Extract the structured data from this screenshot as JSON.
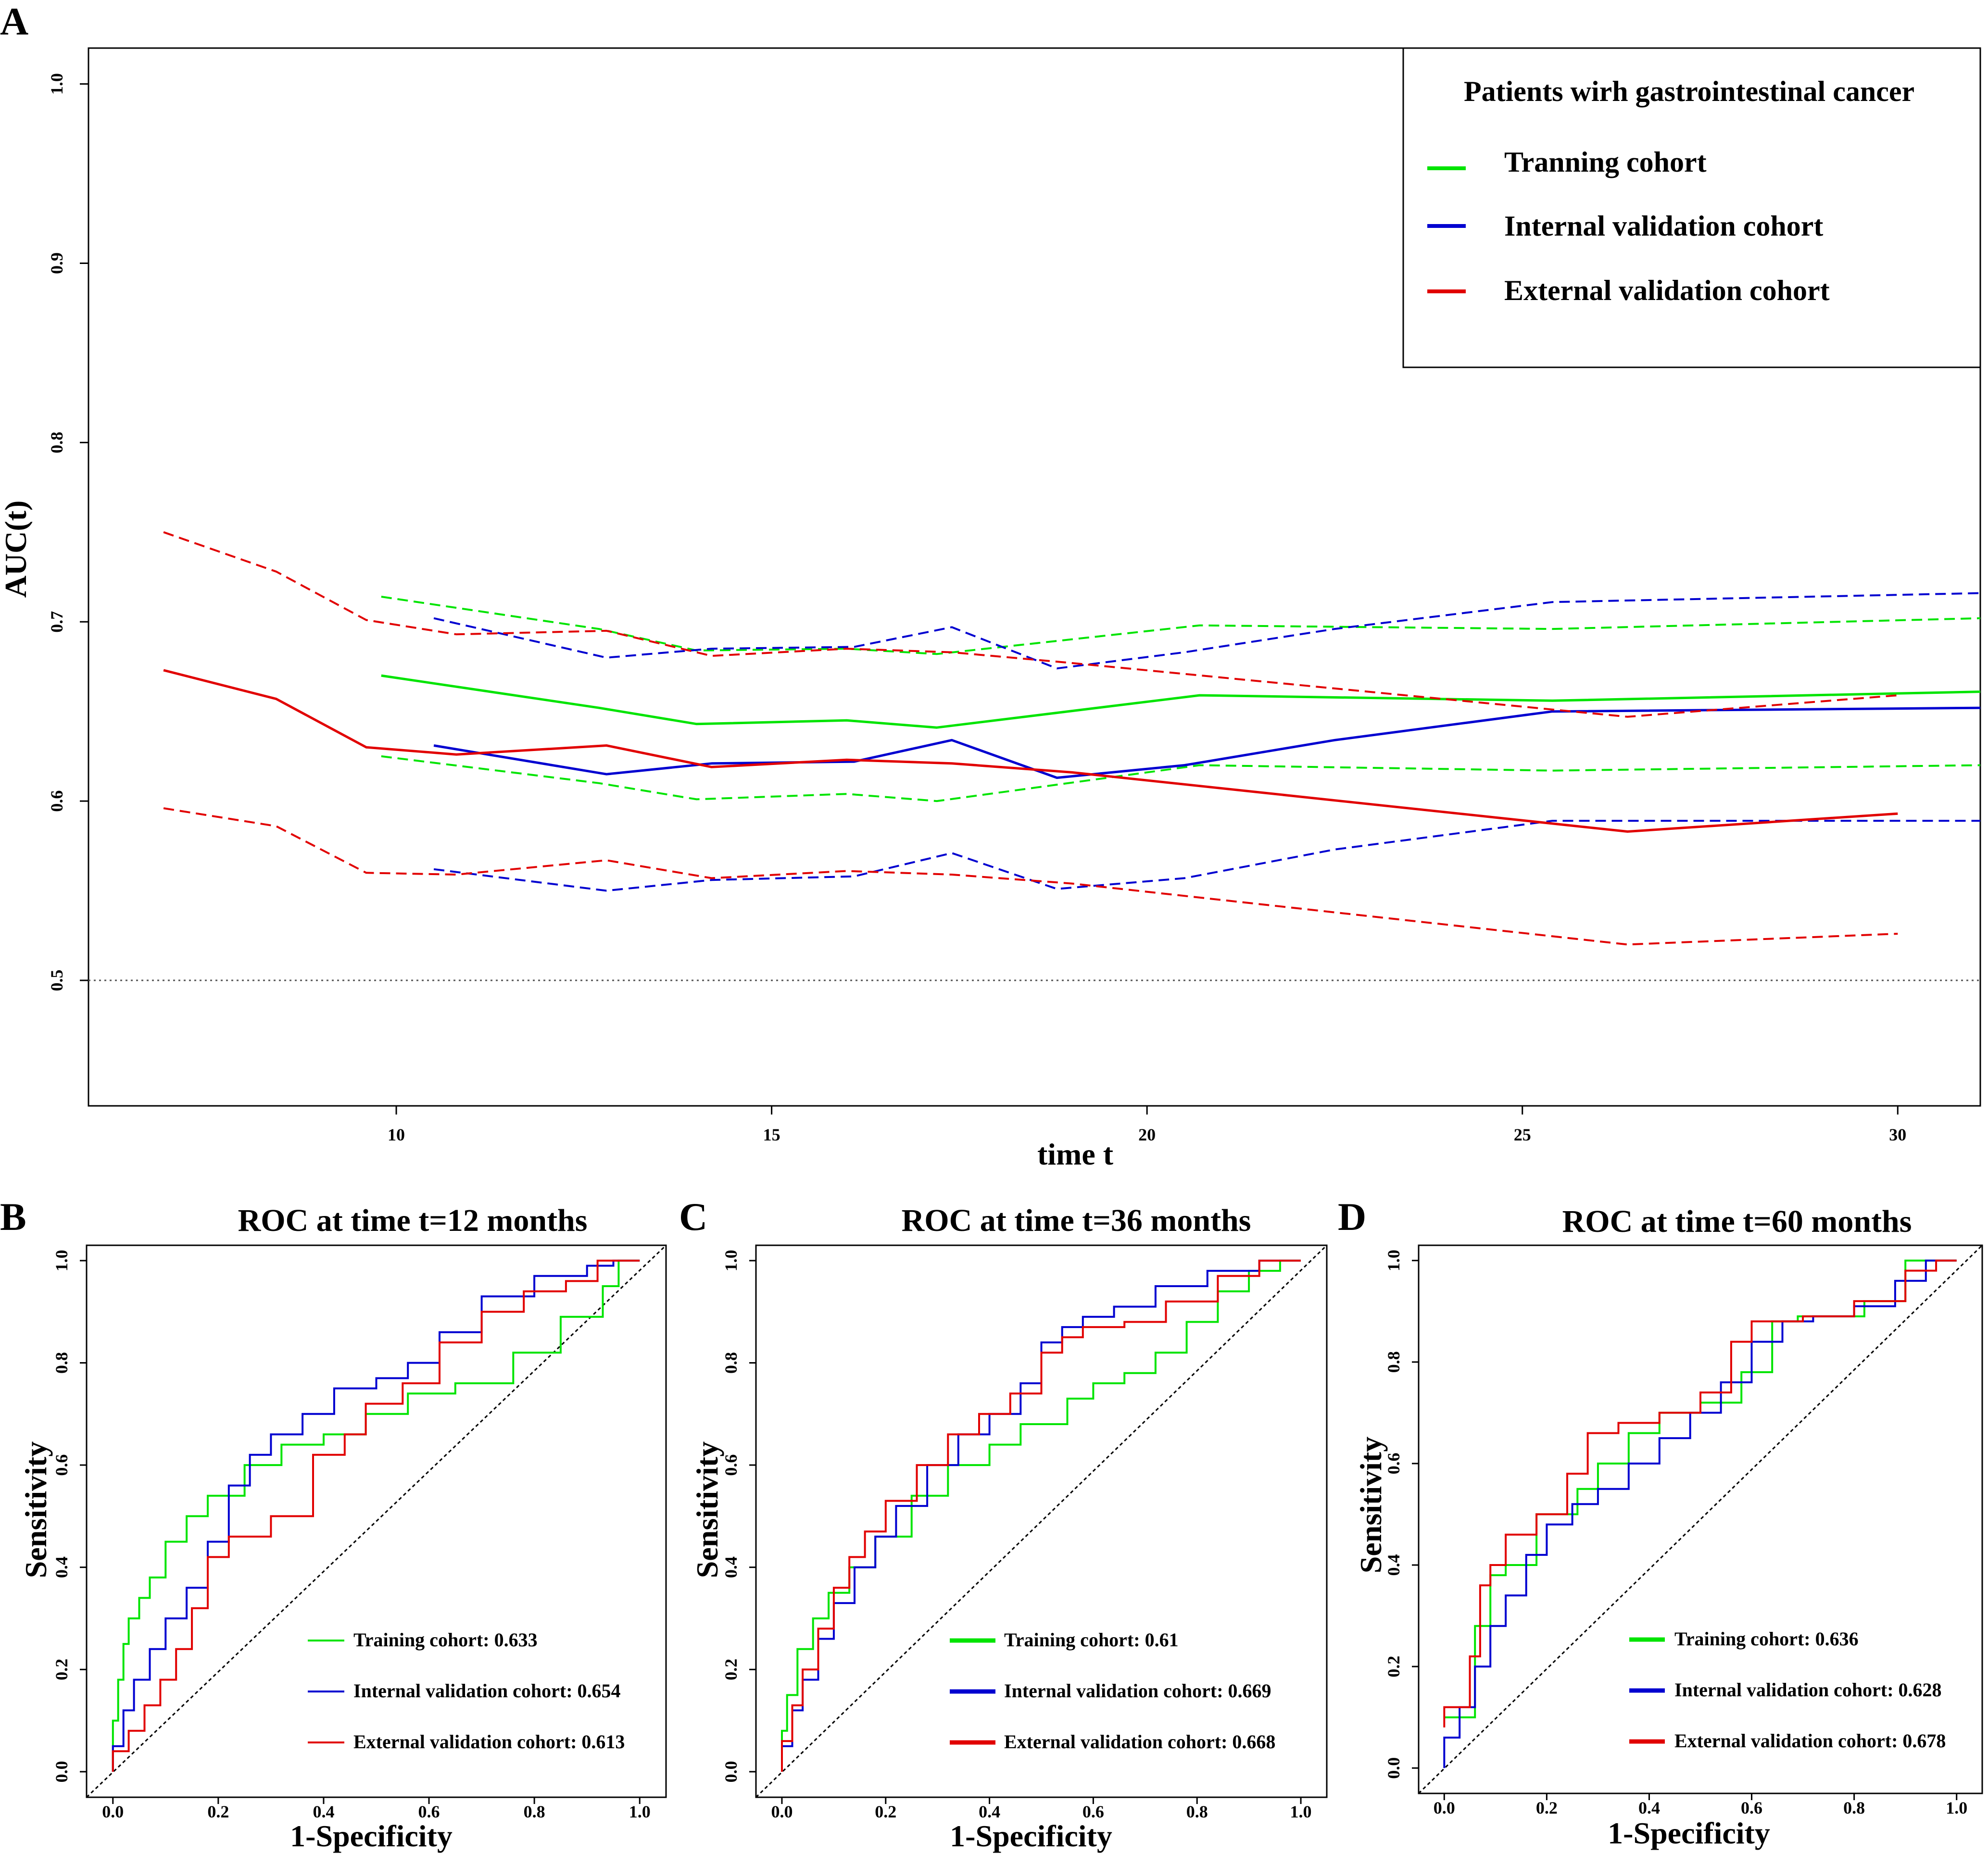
{
  "colors": {
    "training": "#00e400",
    "internal": "#0000d0",
    "external": "#e10000"
  },
  "chart_data": [
    {
      "panel": "A",
      "type": "line",
      "title": "",
      "xlabel": "time t",
      "ylabel": "AUC(t)",
      "xlim": [
        5.9,
        31.1
      ],
      "ylim": [
        0.43,
        1.02
      ],
      "xticks": [
        10,
        15,
        20,
        25,
        30
      ],
      "xtick_labels": [
        "10",
        "15",
        "20",
        "25",
        "30"
      ],
      "yticks": [
        0.5,
        0.6,
        0.7,
        0.8,
        0.9,
        1.0
      ],
      "ytick_labels": [
        "0.5",
        "0.6",
        "0.7",
        "0.8",
        "0.9",
        "1.0"
      ],
      "reference_line": {
        "y": 0.5,
        "style": "dotted"
      },
      "legend": {
        "title": "Patients wirh gastrointestinal cancer",
        "position": "top-right",
        "entries": [
          {
            "label": "Tranning  cohort",
            "color": "training"
          },
          {
            "label": "Internal validation cohort",
            "color": "internal"
          },
          {
            "label": "External validation cohort",
            "color": "external"
          }
        ]
      },
      "series": [
        {
          "name": "Training cohort",
          "color": "training",
          "style": "solid",
          "x": [
            9.8,
            12.7,
            14.0,
            16.0,
            17.2,
            20.7,
            25.4,
            31.1
          ],
          "y": [
            0.67,
            0.652,
            0.643,
            0.645,
            0.641,
            0.659,
            0.656,
            0.661
          ]
        },
        {
          "name": "Training cohort upper",
          "color": "training",
          "style": "dashed",
          "x": [
            9.8,
            12.7,
            14.0,
            16.0,
            17.2,
            20.7,
            25.4,
            31.1
          ],
          "y": [
            0.714,
            0.696,
            0.684,
            0.685,
            0.682,
            0.698,
            0.696,
            0.702
          ]
        },
        {
          "name": "Training cohort lower",
          "color": "training",
          "style": "dashed",
          "x": [
            9.8,
            12.7,
            14.0,
            16.0,
            17.2,
            20.7,
            25.4,
            31.1
          ],
          "y": [
            0.625,
            0.61,
            0.601,
            0.604,
            0.6,
            0.62,
            0.617,
            0.62
          ]
        },
        {
          "name": "Internal validation cohort",
          "color": "internal",
          "style": "solid",
          "x": [
            10.5,
            12.8,
            14.2,
            16.1,
            17.4,
            18.8,
            20.5,
            22.5,
            25.4,
            31.1
          ],
          "y": [
            0.631,
            0.615,
            0.621,
            0.622,
            0.634,
            0.613,
            0.62,
            0.634,
            0.65,
            0.652
          ]
        },
        {
          "name": "Internal validation cohort upper",
          "color": "internal",
          "style": "dashed",
          "x": [
            10.5,
            12.8,
            14.2,
            16.1,
            17.4,
            18.8,
            20.5,
            22.5,
            25.4,
            31.1
          ],
          "y": [
            0.702,
            0.68,
            0.685,
            0.686,
            0.697,
            0.674,
            0.683,
            0.696,
            0.711,
            0.716
          ]
        },
        {
          "name": "Internal validation cohort lower",
          "color": "internal",
          "style": "dashed",
          "x": [
            10.5,
            12.8,
            14.2,
            16.1,
            17.4,
            18.8,
            20.5,
            22.5,
            25.4,
            31.1
          ],
          "y": [
            0.562,
            0.55,
            0.556,
            0.558,
            0.571,
            0.551,
            0.557,
            0.573,
            0.589,
            0.589
          ]
        },
        {
          "name": "External validation cohort",
          "color": "external",
          "style": "solid",
          "x": [
            6.9,
            8.4,
            9.6,
            10.8,
            12.8,
            14.2,
            16.0,
            17.4,
            19.0,
            26.4,
            30.0
          ],
          "y": [
            0.673,
            0.657,
            0.63,
            0.626,
            0.631,
            0.619,
            0.623,
            0.621,
            0.616,
            0.583,
            0.593
          ]
        },
        {
          "name": "External validation cohort upper",
          "color": "external",
          "style": "dashed",
          "x": [
            6.9,
            8.4,
            9.6,
            10.8,
            12.8,
            14.2,
            16.0,
            17.4,
            19.0,
            26.4,
            30.0
          ],
          "y": [
            0.75,
            0.728,
            0.701,
            0.693,
            0.695,
            0.681,
            0.685,
            0.683,
            0.677,
            0.647,
            0.659
          ]
        },
        {
          "name": "External validation cohort lower",
          "color": "external",
          "style": "dashed",
          "x": [
            6.9,
            8.4,
            9.6,
            10.8,
            12.8,
            14.2,
            16.0,
            17.4,
            19.0,
            26.4,
            30.0
          ],
          "y": [
            0.596,
            0.586,
            0.56,
            0.559,
            0.567,
            0.557,
            0.561,
            0.559,
            0.554,
            0.52,
            0.526
          ]
        }
      ]
    },
    {
      "panel": "B",
      "type": "line",
      "title": "ROC at time t=12 months",
      "xlabel": "1-Specificity",
      "ylabel": "Sensitivity",
      "xlim": [
        -0.05,
        1.05
      ],
      "ylim": [
        -0.05,
        1.03
      ],
      "ticks": [
        "0.0",
        "0.2",
        "0.4",
        "0.6",
        "0.8",
        "1.0"
      ],
      "legend": {
        "position": "bottom-right",
        "entries": [
          {
            "label": "Training cohort: 0.633",
            "color": "training"
          },
          {
            "label": "Internal validation cohort: 0.654",
            "color": "internal"
          },
          {
            "label": "External validation cohort: 0.613",
            "color": "external"
          }
        ]
      },
      "series": [
        {
          "name": "Training cohort",
          "auc": 0.633,
          "color": "training",
          "x": [
            0.0,
            0.01,
            0.02,
            0.03,
            0.05,
            0.07,
            0.1,
            0.14,
            0.18,
            0.25,
            0.32,
            0.4,
            0.48,
            0.56,
            0.65,
            0.76,
            0.85,
            0.93,
            0.96,
            1.0
          ],
          "y": [
            0.0,
            0.1,
            0.18,
            0.25,
            0.3,
            0.34,
            0.38,
            0.45,
            0.5,
            0.54,
            0.6,
            0.64,
            0.66,
            0.7,
            0.74,
            0.76,
            0.82,
            0.89,
            0.95,
            1.0
          ]
        },
        {
          "name": "Internal validation cohort",
          "auc": 0.654,
          "color": "internal",
          "x": [
            0.0,
            0.02,
            0.04,
            0.07,
            0.1,
            0.14,
            0.18,
            0.22,
            0.26,
            0.3,
            0.36,
            0.42,
            0.5,
            0.56,
            0.62,
            0.7,
            0.8,
            0.9,
            0.95,
            1.0
          ],
          "y": [
            0.0,
            0.05,
            0.12,
            0.18,
            0.24,
            0.3,
            0.36,
            0.45,
            0.56,
            0.62,
            0.66,
            0.7,
            0.75,
            0.77,
            0.8,
            0.86,
            0.93,
            0.97,
            0.99,
            1.0
          ]
        },
        {
          "name": "External validation cohort",
          "auc": 0.613,
          "color": "external",
          "x": [
            0.0,
            0.03,
            0.06,
            0.09,
            0.12,
            0.15,
            0.18,
            0.22,
            0.3,
            0.38,
            0.44,
            0.48,
            0.55,
            0.62,
            0.7,
            0.78,
            0.86,
            0.92,
            0.96,
            1.0
          ],
          "y": [
            0.0,
            0.04,
            0.08,
            0.13,
            0.18,
            0.24,
            0.32,
            0.42,
            0.46,
            0.5,
            0.62,
            0.66,
            0.72,
            0.76,
            0.84,
            0.9,
            0.94,
            0.96,
            1.0,
            1.0
          ]
        }
      ]
    },
    {
      "panel": "C",
      "type": "line",
      "title": "ROC at time t=36 months",
      "xlabel": "1-Specificity",
      "ylabel": "Sensitivity",
      "xlim": [
        -0.05,
        1.05
      ],
      "ylim": [
        -0.05,
        1.03
      ],
      "ticks": [
        "0.0",
        "0.2",
        "0.4",
        "0.6",
        "0.8",
        "1.0"
      ],
      "legend": {
        "position": "bottom-right",
        "entries": [
          {
            "label": "Training cohort: 0.61",
            "color": "training"
          },
          {
            "label": "Internal validation cohort: 0.669",
            "color": "internal"
          },
          {
            "label": "External validation cohort: 0.668",
            "color": "external"
          }
        ]
      },
      "series": [
        {
          "name": "Training cohort",
          "auc": 0.61,
          "color": "training",
          "x": [
            0.0,
            0.01,
            0.03,
            0.06,
            0.09,
            0.13,
            0.18,
            0.25,
            0.32,
            0.4,
            0.46,
            0.55,
            0.6,
            0.66,
            0.72,
            0.78,
            0.84,
            0.9,
            0.96,
            1.0
          ],
          "y": [
            0.0,
            0.08,
            0.15,
            0.24,
            0.3,
            0.35,
            0.4,
            0.46,
            0.54,
            0.6,
            0.64,
            0.68,
            0.73,
            0.76,
            0.78,
            0.82,
            0.88,
            0.94,
            0.98,
            1.0
          ]
        },
        {
          "name": "Internal validation cohort",
          "auc": 0.669,
          "color": "internal",
          "x": [
            0.0,
            0.02,
            0.04,
            0.07,
            0.1,
            0.14,
            0.18,
            0.22,
            0.28,
            0.34,
            0.4,
            0.46,
            0.5,
            0.54,
            0.58,
            0.64,
            0.72,
            0.82,
            0.92,
            1.0
          ],
          "y": [
            0.0,
            0.05,
            0.12,
            0.18,
            0.26,
            0.33,
            0.4,
            0.46,
            0.52,
            0.6,
            0.66,
            0.7,
            0.76,
            0.84,
            0.87,
            0.89,
            0.91,
            0.95,
            0.98,
            1.0
          ]
        },
        {
          "name": "External validation cohort",
          "auc": 0.668,
          "color": "external",
          "x": [
            0.0,
            0.02,
            0.04,
            0.07,
            0.1,
            0.13,
            0.16,
            0.2,
            0.26,
            0.32,
            0.38,
            0.44,
            0.5,
            0.54,
            0.58,
            0.66,
            0.74,
            0.84,
            0.92,
            1.0
          ],
          "y": [
            0.0,
            0.06,
            0.13,
            0.2,
            0.28,
            0.36,
            0.42,
            0.47,
            0.53,
            0.6,
            0.66,
            0.7,
            0.74,
            0.82,
            0.85,
            0.87,
            0.88,
            0.92,
            0.97,
            1.0
          ]
        }
      ]
    },
    {
      "panel": "D",
      "type": "line",
      "title": "ROC at time t=60 months",
      "xlabel": "1-Specificity",
      "ylabel": "Sensitivity",
      "xlim": [
        -0.05,
        1.05
      ],
      "ylim": [
        -0.05,
        1.03
      ],
      "ticks": [
        "0.0",
        "0.2",
        "0.4",
        "0.6",
        "0.8",
        "1.0"
      ],
      "legend": {
        "position": "bottom-right",
        "entries": [
          {
            "label": "Training cohort: 0.636",
            "color": "training"
          },
          {
            "label": "Internal validation cohort: 0.628",
            "color": "internal"
          },
          {
            "label": "External validation cohort: 0.678",
            "color": "external"
          }
        ]
      },
      "series": [
        {
          "name": "Training cohort",
          "auc": 0.636,
          "color": "training",
          "x": [
            0.0,
            0.06,
            0.09,
            0.12,
            0.18,
            0.26,
            0.3,
            0.36,
            0.42,
            0.5,
            0.58,
            0.64,
            0.69,
            0.74,
            0.82,
            0.9,
            0.93,
            1.0
          ],
          "y": [
            0.1,
            0.1,
            0.28,
            0.38,
            0.4,
            0.5,
            0.55,
            0.6,
            0.66,
            0.7,
            0.72,
            0.78,
            0.88,
            0.89,
            0.89,
            0.92,
            1.0,
            1.0
          ]
        },
        {
          "name": "Internal validation cohort",
          "auc": 0.628,
          "color": "internal",
          "x": [
            0.0,
            0.03,
            0.06,
            0.09,
            0.12,
            0.16,
            0.2,
            0.25,
            0.3,
            0.36,
            0.42,
            0.48,
            0.54,
            0.6,
            0.66,
            0.72,
            0.8,
            0.88,
            0.94,
            1.0
          ],
          "y": [
            0.0,
            0.06,
            0.12,
            0.2,
            0.28,
            0.34,
            0.42,
            0.48,
            0.52,
            0.55,
            0.6,
            0.65,
            0.7,
            0.76,
            0.84,
            0.88,
            0.89,
            0.91,
            0.96,
            1.0
          ]
        },
        {
          "name": "External validation cohort",
          "auc": 0.678,
          "color": "external",
          "x": [
            0.0,
            0.05,
            0.07,
            0.09,
            0.12,
            0.18,
            0.24,
            0.28,
            0.34,
            0.42,
            0.5,
            0.56,
            0.6,
            0.64,
            0.7,
            0.8,
            0.9,
            0.96,
            1.0
          ],
          "y": [
            0.08,
            0.12,
            0.22,
            0.36,
            0.4,
            0.46,
            0.5,
            0.58,
            0.66,
            0.68,
            0.7,
            0.74,
            0.84,
            0.88,
            0.88,
            0.89,
            0.92,
            0.98,
            1.0
          ]
        }
      ]
    }
  ]
}
